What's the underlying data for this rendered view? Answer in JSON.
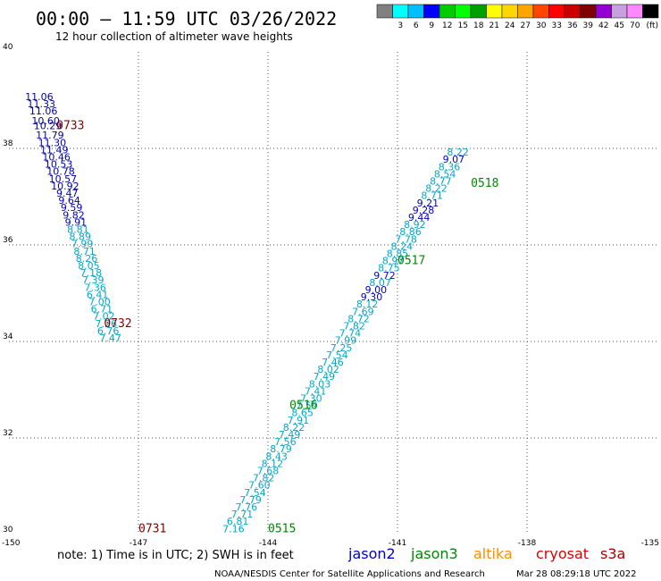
{
  "header": {
    "title": "00:00 – 11:59 UTC 03/26/2022",
    "subtitle": "12 hour collection of altimeter wave heights"
  },
  "colorbar": {
    "colors": [
      "#808080",
      "#00ffff",
      "#00bfff",
      "#0000ff",
      "#00cd00",
      "#00ff00",
      "#00a000",
      "#ffff00",
      "#ffd700",
      "#ffa500",
      "#ff4500",
      "#ff0000",
      "#cd0000",
      "#800000",
      "#9400d3",
      "#c8a0e0",
      "#ff88ff",
      "#000000"
    ],
    "labels": [
      "3",
      "6",
      "9",
      "12",
      "15",
      "18",
      "21",
      "24",
      "27",
      "30",
      "33",
      "36",
      "39",
      "42",
      "45",
      "70"
    ],
    "unit": "(ft)"
  },
  "note": "note:  1) Time is in UTC;  2) SWH is in feet",
  "legend": [
    {
      "label": "jason2",
      "color": "#0000cc"
    },
    {
      "label": "jason3",
      "color": "#008800"
    },
    {
      "label": "altika",
      "color": "#ff8c00"
    },
    {
      "label": "cryosat",
      "color": "#dd0000"
    },
    {
      "label": "s3a",
      "color": "#aa0000"
    }
  ],
  "footer": {
    "credit": "NOAA/NESDIS Center for Satellite Applications and Research",
    "timestamp": "Mar 28 08:29:18 UTC 2022"
  },
  "chart_data": {
    "type": "scatter",
    "xlim": [
      -150,
      -135
    ],
    "ylim": [
      30,
      40
    ],
    "x_ticks": [
      "-150",
      "-147",
      "-144",
      "-141",
      "-138",
      "-135"
    ],
    "y_ticks": [
      "30",
      "32",
      "34",
      "36",
      "38",
      "40"
    ],
    "grid": true,
    "series": [
      {
        "name": "",
        "color_by_value": true,
        "points": [
          {
            "x": -149.3,
            "y": 39.0,
            "v": "11.06"
          },
          {
            "x": -149.25,
            "y": 38.85,
            "v": "11.33"
          },
          {
            "x": -149.2,
            "y": 38.7,
            "v": "11.06"
          },
          {
            "x": -149.15,
            "y": 38.5,
            "v": "10.60"
          },
          {
            "x": -149.1,
            "y": 38.4,
            "v": "10.29"
          },
          {
            "x": -149.05,
            "y": 38.2,
            "v": "11.79"
          },
          {
            "x": -149.0,
            "y": 38.05,
            "v": "11.30"
          },
          {
            "x": -148.95,
            "y": 37.9,
            "v": "11.49"
          },
          {
            "x": -148.9,
            "y": 37.75,
            "v": "10.46"
          },
          {
            "x": -148.85,
            "y": 37.6,
            "v": "10.53"
          },
          {
            "x": -148.8,
            "y": 37.45,
            "v": "10.78"
          },
          {
            "x": -148.75,
            "y": 37.3,
            "v": "10.57"
          },
          {
            "x": -148.7,
            "y": 37.15,
            "v": "10.92"
          },
          {
            "x": -148.65,
            "y": 37.0,
            "v": "9.47"
          },
          {
            "x": -148.6,
            "y": 36.85,
            "v": "9.64"
          },
          {
            "x": -148.55,
            "y": 36.7,
            "v": "9.59"
          },
          {
            "x": -148.5,
            "y": 36.55,
            "v": "9.82"
          },
          {
            "x": -148.45,
            "y": 36.4,
            "v": "9.91"
          },
          {
            "x": -148.4,
            "y": 36.25,
            "v": "8.81"
          },
          {
            "x": -148.35,
            "y": 36.1,
            "v": "8.89"
          },
          {
            "x": -148.3,
            "y": 35.95,
            "v": "7.99"
          },
          {
            "x": -148.25,
            "y": 35.8,
            "v": "8.71"
          },
          {
            "x": -148.2,
            "y": 35.65,
            "v": "8.26"
          },
          {
            "x": -148.15,
            "y": 35.5,
            "v": "8.05"
          },
          {
            "x": -148.1,
            "y": 35.35,
            "v": "7.18"
          },
          {
            "x": -148.05,
            "y": 35.2,
            "v": "7.39"
          },
          {
            "x": -148.0,
            "y": 35.05,
            "v": "7.36"
          },
          {
            "x": -147.95,
            "y": 34.9,
            "v": "6.41"
          },
          {
            "x": -147.9,
            "y": 34.75,
            "v": "7.00"
          },
          {
            "x": -147.85,
            "y": 34.6,
            "v": "6.71"
          },
          {
            "x": -147.8,
            "y": 34.45,
            "v": "7.02"
          },
          {
            "x": -147.75,
            "y": 34.3,
            "v": "7.26"
          },
          {
            "x": -147.7,
            "y": 34.15,
            "v": "6.76"
          },
          {
            "x": -147.65,
            "y": 34.0,
            "v": "7.47"
          }
        ]
      },
      {
        "name": "",
        "color_by_value": true,
        "points": [
          {
            "x": -144.8,
            "y": 30.05,
            "v": "7.16"
          },
          {
            "x": -144.7,
            "y": 30.2,
            "v": "6.81"
          },
          {
            "x": -144.6,
            "y": 30.35,
            "v": "7.71"
          },
          {
            "x": -144.5,
            "y": 30.5,
            "v": "7.76"
          },
          {
            "x": -144.4,
            "y": 30.65,
            "v": "7.79"
          },
          {
            "x": -144.3,
            "y": 30.8,
            "v": "7.54"
          },
          {
            "x": -144.2,
            "y": 30.95,
            "v": "7.60"
          },
          {
            "x": -144.1,
            "y": 31.1,
            "v": "7.82"
          },
          {
            "x": -144.0,
            "y": 31.25,
            "v": "7.68"
          },
          {
            "x": -143.9,
            "y": 31.4,
            "v": "8.12"
          },
          {
            "x": -143.8,
            "y": 31.55,
            "v": "8.43"
          },
          {
            "x": -143.7,
            "y": 31.7,
            "v": "8.79"
          },
          {
            "x": -143.6,
            "y": 31.85,
            "v": "7.56"
          },
          {
            "x": -143.5,
            "y": 32.0,
            "v": "7.49"
          },
          {
            "x": -143.4,
            "y": 32.15,
            "v": "8.22"
          },
          {
            "x": -143.3,
            "y": 32.3,
            "v": "7.91"
          },
          {
            "x": -143.2,
            "y": 32.45,
            "v": "8.65"
          },
          {
            "x": -143.1,
            "y": 32.6,
            "v": "7.59"
          },
          {
            "x": -143.0,
            "y": 32.75,
            "v": "7.30"
          },
          {
            "x": -142.9,
            "y": 32.9,
            "v": "7.41"
          },
          {
            "x": -142.8,
            "y": 33.05,
            "v": "8.03"
          },
          {
            "x": -142.7,
            "y": 33.2,
            "v": "7.49"
          },
          {
            "x": -142.6,
            "y": 33.35,
            "v": "8.02"
          },
          {
            "x": -142.5,
            "y": 33.5,
            "v": "7.46"
          },
          {
            "x": -142.4,
            "y": 33.65,
            "v": "7.54"
          },
          {
            "x": -142.3,
            "y": 33.8,
            "v": "7.25"
          },
          {
            "x": -142.2,
            "y": 33.95,
            "v": "7.99"
          },
          {
            "x": -142.1,
            "y": 34.1,
            "v": "7.74"
          },
          {
            "x": -142.0,
            "y": 34.25,
            "v": "7.82"
          },
          {
            "x": -141.9,
            "y": 34.4,
            "v": "8.72"
          },
          {
            "x": -141.8,
            "y": 34.55,
            "v": "7.69"
          },
          {
            "x": -141.7,
            "y": 34.7,
            "v": "8.12"
          },
          {
            "x": -141.6,
            "y": 34.85,
            "v": "9.30"
          },
          {
            "x": -141.5,
            "y": 35.0,
            "v": "9.00"
          },
          {
            "x": -141.4,
            "y": 35.15,
            "v": "8.07"
          },
          {
            "x": -141.3,
            "y": 35.3,
            "v": "9.72"
          },
          {
            "x": -141.2,
            "y": 35.45,
            "v": "8.75"
          },
          {
            "x": -141.1,
            "y": 35.6,
            "v": "8.97"
          },
          {
            "x": -141.0,
            "y": 35.75,
            "v": "8.85"
          },
          {
            "x": -140.9,
            "y": 35.9,
            "v": "8.24"
          },
          {
            "x": -140.8,
            "y": 36.05,
            "v": "7.78"
          },
          {
            "x": -140.7,
            "y": 36.2,
            "v": "8.86"
          },
          {
            "x": -140.6,
            "y": 36.35,
            "v": "8.92"
          },
          {
            "x": -140.5,
            "y": 36.5,
            "v": "9.44"
          },
          {
            "x": -140.4,
            "y": 36.65,
            "v": "9.28"
          },
          {
            "x": -140.3,
            "y": 36.8,
            "v": "9.21"
          },
          {
            "x": -140.2,
            "y": 36.95,
            "v": "8.71"
          },
          {
            "x": -140.1,
            "y": 37.1,
            "v": "8.22"
          },
          {
            "x": -140.0,
            "y": 37.25,
            "v": "8.77"
          },
          {
            "x": -139.9,
            "y": 37.4,
            "v": "8.54"
          },
          {
            "x": -139.8,
            "y": 37.55,
            "v": "8.36"
          },
          {
            "x": -139.7,
            "y": 37.7,
            "v": "9.07"
          },
          {
            "x": -139.6,
            "y": 37.85,
            "v": "8.22"
          }
        ]
      }
    ],
    "pass_labels": [
      {
        "text": "0733",
        "x": -148.9,
        "y": 38.4,
        "color": "#800000"
      },
      {
        "text": "0732",
        "x": -147.8,
        "y": 34.3,
        "color": "#800000"
      },
      {
        "text": "0731",
        "x": -147.0,
        "y": 30.05,
        "color": "#800000"
      },
      {
        "text": "0515",
        "x": -144.0,
        "y": 30.05,
        "color": "#008800"
      },
      {
        "text": "0516",
        "x": -143.5,
        "y": 32.6,
        "color": "#008800"
      },
      {
        "text": "0517",
        "x": -141.0,
        "y": 35.6,
        "color": "#008800"
      },
      {
        "text": "0518",
        "x": -139.3,
        "y": 37.2,
        "color": "#008800"
      }
    ]
  }
}
